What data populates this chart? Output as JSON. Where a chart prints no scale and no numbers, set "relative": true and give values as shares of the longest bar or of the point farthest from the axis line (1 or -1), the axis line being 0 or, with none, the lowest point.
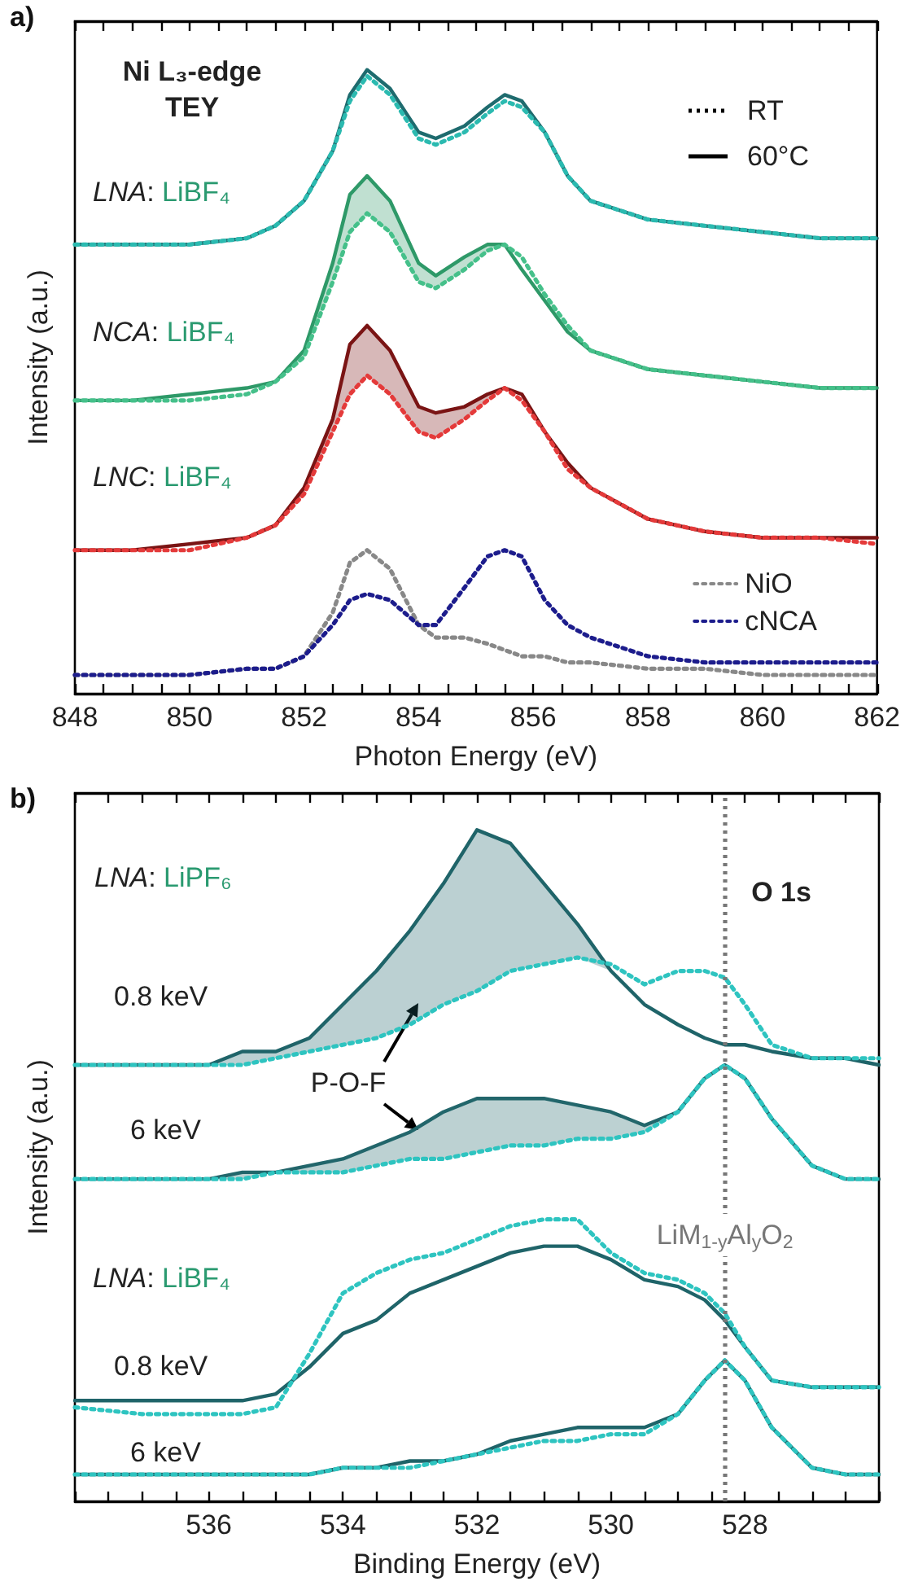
{
  "chart_data": [
    {
      "type": "line",
      "title": "a)",
      "xlabel": "Photon Energy (eV)",
      "ylabel": "Intensity (a.u.)",
      "relative": true,
      "marker": "none",
      "legend": "bottom right",
      "annotations": [
        "Ni L₃-edge\nTEY",
        "RT",
        "60°C",
        "LNA: LiBF₄",
        "NCA: LiBF₄",
        "LNC: LiBF₄"
      ],
      "xlim": [
        848,
        862
      ],
      "xticks": [
        848,
        {
          "value": 848.5,
          "label": null
        },
        {
          "value": 849,
          "label": null
        },
        {
          "value": 849.5,
          "label": null
        },
        850,
        {
          "value": 850.5,
          "label": null
        },
        {
          "value": 851,
          "label": null
        },
        {
          "value": 851.5,
          "label": null
        },
        852,
        {
          "value": 852.5,
          "label": null
        },
        {
          "value": 853,
          "label": null
        },
        {
          "value": 853.5,
          "label": null
        },
        854,
        {
          "value": 854.5,
          "label": null
        },
        {
          "value": 855,
          "label": null
        },
        {
          "value": 855.5,
          "label": null
        },
        856,
        {
          "value": 856.5,
          "label": null
        },
        {
          "value": 857,
          "label": null
        },
        {
          "value": 857.5,
          "label": null
        },
        858,
        {
          "value": 858.5,
          "label": null
        },
        {
          "value": 859,
          "label": null
        },
        {
          "value": 859.5,
          "label": null
        },
        860,
        {
          "value": 860.5,
          "label": null
        },
        {
          "value": 861,
          "label": null
        },
        {
          "value": 861.5,
          "label": null
        },
        862
      ],
      "x": [
        848,
        849,
        850,
        851,
        851.5,
        852,
        852.5,
        852.8,
        853.1,
        853.5,
        854,
        854.3,
        854.8,
        855.2,
        855.5,
        855.8,
        856.2,
        856.6,
        857,
        858,
        859,
        860,
        861,
        862
      ],
      "series": [
        {
          "color": "#1e6b6e",
          "line_style": "solid",
          "values": [
            0.72,
            0.72,
            0.72,
            0.73,
            0.75,
            0.79,
            0.87,
            0.96,
            1.0,
            0.97,
            0.9,
            0.89,
            0.91,
            0.94,
            0.96,
            0.95,
            0.9,
            0.83,
            0.79,
            0.76,
            0.75,
            0.74,
            0.73,
            0.73
          ]
        },
        {
          "color": "#2bbab0",
          "line_style": "dotted",
          "values": [
            0.72,
            0.72,
            0.72,
            0.73,
            0.75,
            0.79,
            0.87,
            0.95,
            0.99,
            0.96,
            0.89,
            0.88,
            0.9,
            0.93,
            0.95,
            0.94,
            0.9,
            0.83,
            0.79,
            0.76,
            0.75,
            0.74,
            0.73,
            0.73
          ]
        },
        {
          "color": "#2e9968",
          "line_style": "solid",
          "values": [
            0.47,
            0.47,
            0.48,
            0.49,
            0.5,
            0.55,
            0.69,
            0.8,
            0.83,
            0.79,
            0.69,
            0.67,
            0.7,
            0.72,
            0.72,
            0.68,
            0.63,
            0.58,
            0.55,
            0.52,
            0.51,
            0.5,
            0.49,
            0.49
          ],
          "upper": [
            null,
            null,
            null,
            null,
            0.5,
            0.55,
            0.69,
            0.8,
            0.83,
            0.79,
            0.69,
            0.67,
            0.7,
            0.72,
            0.72,
            null,
            null,
            null,
            null,
            null,
            null,
            null,
            null,
            null
          ],
          "lower": [
            null,
            null,
            null,
            null,
            0.5,
            0.54,
            0.66,
            0.74,
            0.77,
            0.74,
            0.66,
            0.65,
            0.68,
            0.71,
            0.72,
            null,
            null,
            null,
            null,
            null,
            null,
            null,
            null,
            null
          ]
        },
        {
          "color": "#45c08a",
          "line_style": "dotted",
          "values": [
            0.47,
            0.47,
            0.47,
            0.48,
            0.5,
            0.54,
            0.66,
            0.74,
            0.77,
            0.74,
            0.66,
            0.65,
            0.68,
            0.71,
            0.72,
            0.7,
            0.64,
            0.59,
            0.55,
            0.52,
            0.51,
            0.5,
            0.49,
            0.49
          ]
        },
        {
          "color": "#7a1414",
          "line_style": "solid",
          "values": [
            0.23,
            0.23,
            0.24,
            0.25,
            0.27,
            0.33,
            0.44,
            0.56,
            0.59,
            0.55,
            0.46,
            0.45,
            0.46,
            0.48,
            0.49,
            0.48,
            0.42,
            0.37,
            0.33,
            0.28,
            0.26,
            0.25,
            0.25,
            0.25
          ],
          "upper": [
            null,
            null,
            null,
            null,
            0.27,
            0.33,
            0.44,
            0.56,
            0.59,
            0.55,
            0.46,
            0.45,
            0.46,
            0.48,
            0.49,
            null,
            null,
            null,
            null,
            null,
            null,
            null,
            null,
            null
          ],
          "lower": [
            null,
            null,
            null,
            null,
            0.27,
            0.32,
            0.42,
            0.48,
            0.51,
            0.48,
            0.42,
            0.41,
            0.44,
            0.47,
            0.49,
            null,
            null,
            null,
            null,
            null,
            null,
            null,
            null,
            null
          ]
        },
        {
          "color": "#e43a3a",
          "line_style": "dotted",
          "values": [
            0.23,
            0.23,
            0.23,
            0.25,
            0.27,
            0.32,
            0.42,
            0.48,
            0.51,
            0.48,
            0.42,
            0.41,
            0.44,
            0.47,
            0.49,
            0.47,
            0.42,
            0.36,
            0.33,
            0.28,
            0.26,
            0.25,
            0.25,
            0.24
          ]
        },
        {
          "name": "NiO",
          "color": "#888888",
          "line_style": "dotted",
          "values": [
            0.03,
            0.03,
            0.03,
            0.04,
            0.04,
            0.06,
            0.13,
            0.21,
            0.23,
            0.2,
            0.11,
            0.09,
            0.09,
            0.08,
            0.07,
            0.06,
            0.06,
            0.05,
            0.05,
            0.04,
            0.04,
            0.03,
            0.03,
            0.03
          ]
        },
        {
          "name": "cNCA",
          "color": "#1c1c8c",
          "line_style": "dotted",
          "values": [
            0.03,
            0.03,
            0.03,
            0.04,
            0.04,
            0.06,
            0.11,
            0.15,
            0.16,
            0.15,
            0.11,
            0.11,
            0.17,
            0.22,
            0.23,
            0.22,
            0.15,
            0.11,
            0.09,
            0.06,
            0.05,
            0.05,
            0.05,
            0.05
          ]
        }
      ]
    },
    {
      "type": "line",
      "title": "b)",
      "xlabel": "Binding Energy (eV)",
      "ylabel": "Intensity (a.u.)",
      "relative": true,
      "marker": "none",
      "annotations": [
        "LNA: LiPF₆",
        "0.8 keV",
        "6 keV",
        "O 1s",
        "LNA: LiBF₄",
        "0.8 keV",
        "6 keV",
        "P-O-F"
      ],
      "ref_lines": [
        {
          "axis": "x",
          "value": 528.3,
          "label": "LiM$_{1-y}$Al$_{y}$O$_{2}$",
          "color": "#777777",
          "line_style": "dotted"
        }
      ],
      "xlim": [
        538,
        526
      ],
      "xticks": [
        {
          "value": 538,
          "label": null
        },
        {
          "value": 537.5,
          "label": null
        },
        {
          "value": 537,
          "label": null
        },
        {
          "value": 536.5,
          "label": null
        },
        536,
        {
          "value": 535.5,
          "label": null
        },
        {
          "value": 535,
          "label": null
        },
        {
          "value": 534.5,
          "label": null
        },
        534,
        {
          "value": 533.5,
          "label": null
        },
        {
          "value": 533,
          "label": null
        },
        {
          "value": 532.5,
          "label": null
        },
        532,
        {
          "value": 531.5,
          "label": null
        },
        {
          "value": 531,
          "label": null
        },
        {
          "value": 530.5,
          "label": null
        },
        530,
        {
          "value": 529.5,
          "label": null
        },
        {
          "value": 529,
          "label": null
        },
        {
          "value": 528.5,
          "label": null
        },
        528,
        {
          "value": 527.5,
          "label": null
        },
        {
          "value": 527,
          "label": null
        },
        {
          "value": 526.5,
          "label": null
        },
        {
          "value": 526,
          "label": null
        }
      ],
      "x": [
        538,
        537,
        536,
        535.5,
        535,
        534.5,
        534,
        533.5,
        533,
        532.5,
        532,
        531.5,
        531,
        530.5,
        530,
        529.5,
        529,
        528.6,
        528.3,
        528,
        527.6,
        527,
        526.5,
        526
      ],
      "series": [
        {
          "color": "#1f6469",
          "line_style": "solid",
          "values": [
            0.65,
            0.65,
            0.65,
            0.67,
            0.67,
            0.69,
            0.74,
            0.79,
            0.85,
            0.92,
            1.0,
            0.98,
            0.92,
            0.86,
            0.79,
            0.74,
            0.71,
            0.69,
            0.68,
            0.68,
            0.67,
            0.66,
            0.66,
            0.65
          ],
          "upper": [
            null,
            null,
            0.65,
            0.67,
            0.67,
            0.69,
            0.74,
            0.79,
            0.85,
            0.92,
            1.0,
            0.98,
            0.92,
            0.86,
            0.79,
            null,
            null,
            null,
            null,
            null,
            null,
            null,
            null,
            null
          ],
          "lower": [
            null,
            null,
            0.65,
            0.65,
            0.66,
            0.67,
            0.68,
            0.69,
            0.71,
            0.74,
            0.76,
            0.79,
            0.8,
            0.81,
            0.79,
            null,
            null,
            null,
            null,
            null,
            null,
            null,
            null,
            null
          ]
        },
        {
          "color": "#2ec4c0",
          "line_style": "dotted",
          "values": [
            0.65,
            0.65,
            0.65,
            0.65,
            0.66,
            0.67,
            0.68,
            0.69,
            0.71,
            0.74,
            0.76,
            0.79,
            0.8,
            0.81,
            0.8,
            0.77,
            0.79,
            0.79,
            0.78,
            0.74,
            0.68,
            0.66,
            0.66,
            0.66
          ]
        },
        {
          "color": "#22666b",
          "line_style": "solid",
          "values": [
            0.48,
            0.48,
            0.48,
            0.49,
            0.49,
            0.5,
            0.51,
            0.53,
            0.55,
            0.58,
            0.6,
            0.6,
            0.6,
            0.59,
            0.58,
            0.56,
            0.58,
            0.63,
            0.65,
            0.63,
            0.57,
            0.5,
            0.48,
            0.48
          ],
          "upper": [
            null,
            null,
            0.48,
            0.49,
            0.49,
            0.5,
            0.51,
            0.53,
            0.55,
            0.58,
            0.6,
            0.6,
            0.6,
            0.59,
            0.58,
            0.56,
            0.58,
            null,
            null,
            null,
            null,
            null,
            null,
            null
          ],
          "lower": [
            null,
            null,
            0.48,
            0.48,
            0.49,
            0.49,
            0.49,
            0.5,
            0.51,
            0.51,
            0.52,
            0.53,
            0.53,
            0.54,
            0.54,
            0.55,
            0.58,
            null,
            null,
            null,
            null,
            null,
            null,
            null
          ]
        },
        {
          "color": "#2ec4c0",
          "line_style": "dotted",
          "values": [
            0.48,
            0.48,
            0.48,
            0.48,
            0.49,
            0.49,
            0.49,
            0.5,
            0.51,
            0.51,
            0.52,
            0.53,
            0.53,
            0.54,
            0.54,
            0.55,
            0.58,
            0.63,
            0.65,
            0.63,
            0.57,
            0.5,
            0.48,
            0.48
          ]
        },
        {
          "color": "#1f6469",
          "line_style": "solid",
          "values": [
            0.15,
            0.15,
            0.15,
            0.15,
            0.16,
            0.2,
            0.25,
            0.27,
            0.31,
            0.33,
            0.35,
            0.37,
            0.38,
            0.38,
            0.36,
            0.33,
            0.32,
            0.3,
            0.27,
            0.23,
            0.18,
            0.17,
            0.17,
            0.17
          ]
        },
        {
          "color": "#2ec4c0",
          "line_style": "dotted",
          "values": [
            0.14,
            0.13,
            0.13,
            0.13,
            0.14,
            0.22,
            0.31,
            0.34,
            0.36,
            0.37,
            0.39,
            0.41,
            0.42,
            0.42,
            0.37,
            0.34,
            0.33,
            0.31,
            0.28,
            0.23,
            0.18,
            0.17,
            0.17,
            0.17
          ]
        },
        {
          "color": "#1f6469",
          "line_style": "solid",
          "values": [
            0.04,
            0.04,
            0.04,
            0.04,
            0.04,
            0.04,
            0.05,
            0.05,
            0.06,
            0.06,
            0.07,
            0.09,
            0.1,
            0.11,
            0.11,
            0.11,
            0.13,
            0.18,
            0.21,
            0.18,
            0.11,
            0.05,
            0.04,
            0.04
          ]
        },
        {
          "color": "#2ec4c0",
          "line_style": "dotted",
          "values": [
            0.04,
            0.04,
            0.04,
            0.04,
            0.04,
            0.04,
            0.05,
            0.05,
            0.05,
            0.06,
            0.07,
            0.08,
            0.09,
            0.09,
            0.1,
            0.1,
            0.13,
            0.18,
            0.21,
            0.18,
            0.11,
            0.05,
            0.04,
            0.04
          ]
        }
      ]
    }
  ]
}
